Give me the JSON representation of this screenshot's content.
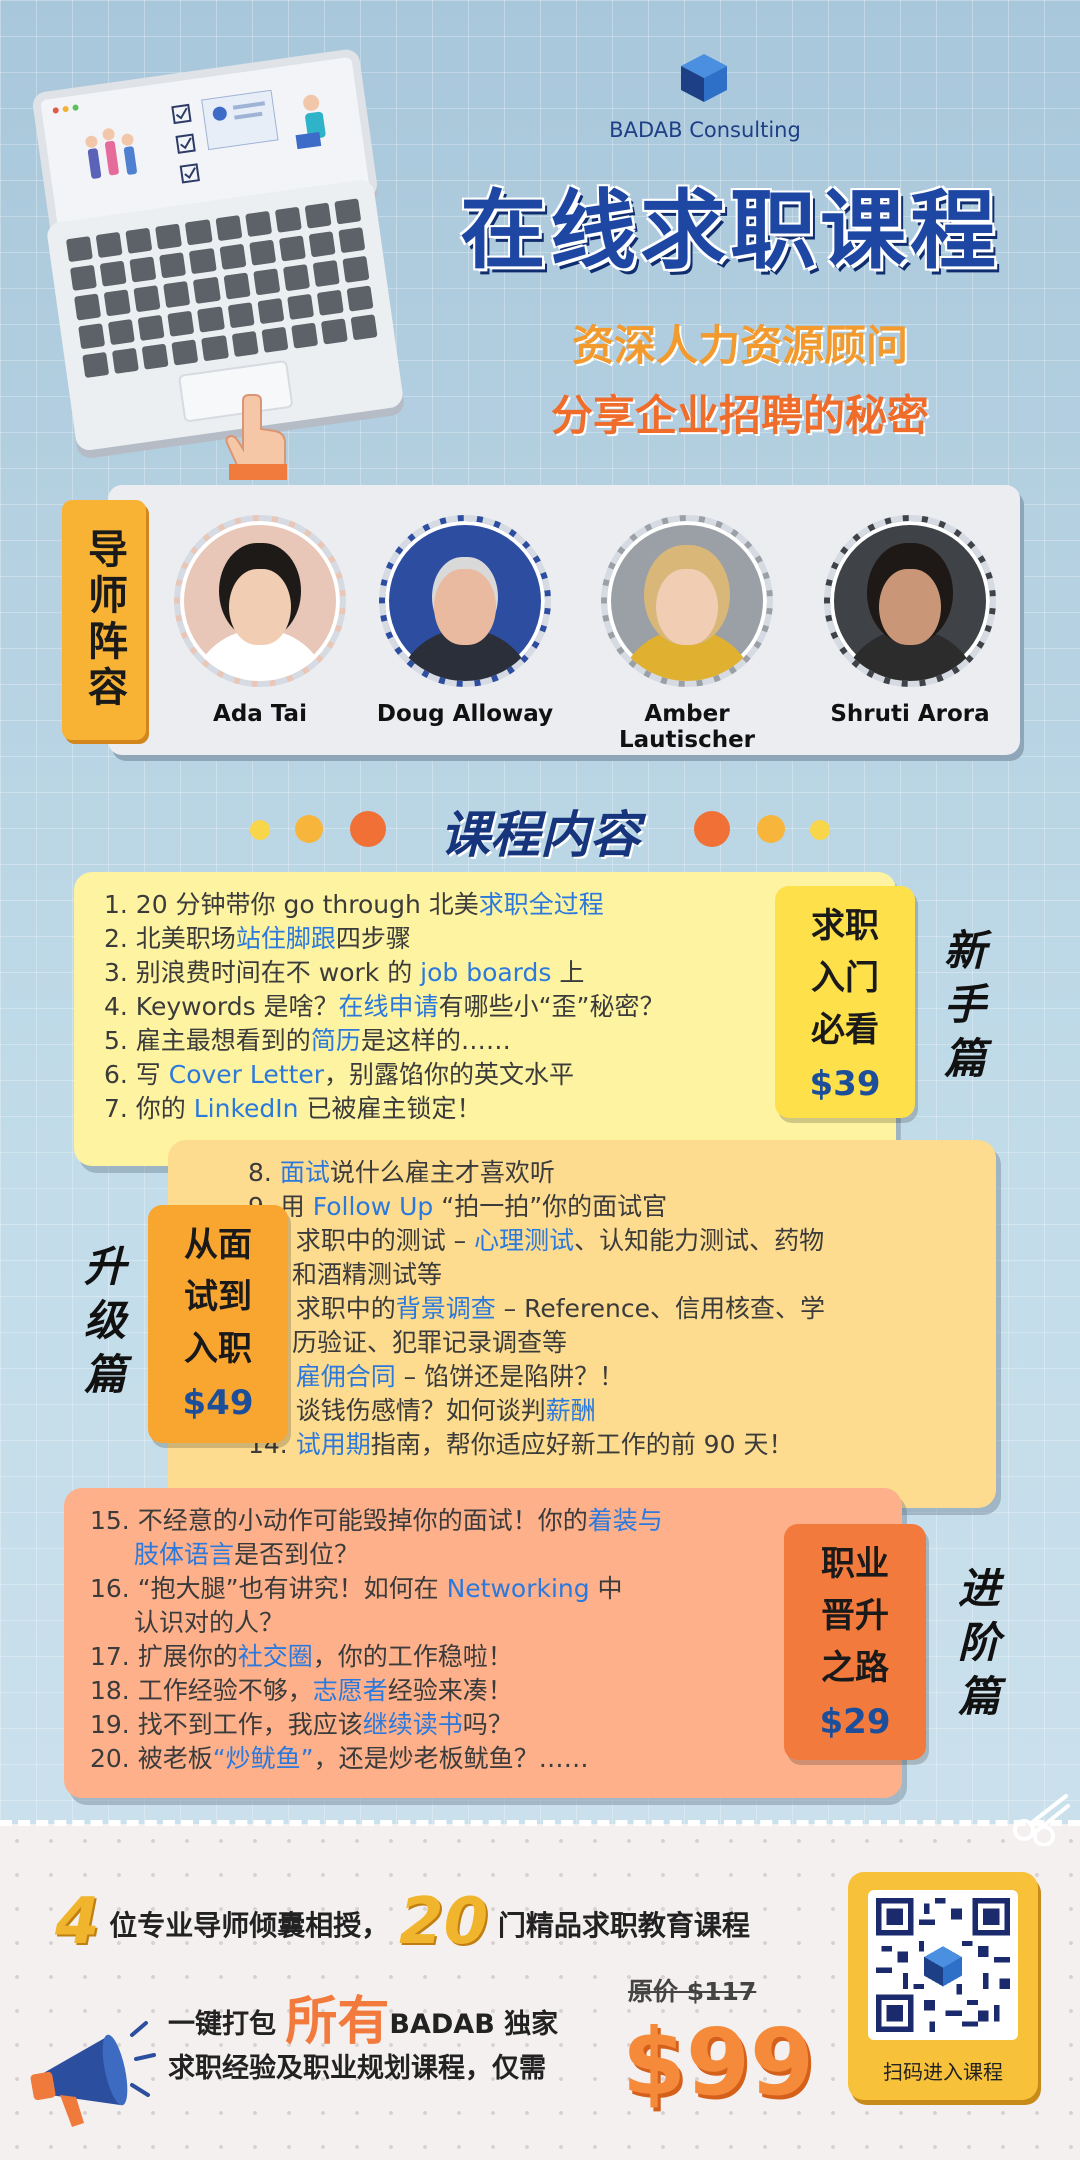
{
  "brand": {
    "name": "BADAB Consulting"
  },
  "header": {
    "title": "在线求职课程",
    "subtitle1": "资深人力资源顾问",
    "subtitle2": "分享企业招聘的秘密"
  },
  "mentors": {
    "tag": "导师阵容",
    "people": [
      {
        "name": "Ada Tai"
      },
      {
        "name": "Doug Alloway"
      },
      {
        "name": "Amber Lautischer"
      },
      {
        "name": "Shruti Arora"
      }
    ]
  },
  "course": {
    "title": "课程内容"
  },
  "sections": [
    {
      "side_label": "新手篇",
      "badge_text": "求职入门必看",
      "price": "$39",
      "items": [
        [
          "1. 20 分钟带你 go through 北美",
          "求职全过程",
          ""
        ],
        [
          "2. 北美职场",
          "站住脚跟",
          "四步骤"
        ],
        [
          "3. 别浪费时间在不 work 的 ",
          "job boards",
          " 上"
        ],
        [
          "4. Keywords 是啥？",
          "在线申请",
          "有哪些小“歪”秘密？"
        ],
        [
          "5. 雇主最想看到的",
          "简历",
          "是这样的……"
        ],
        [
          "6. 写 ",
          "Cover Letter",
          "，别露馅你的英文水平"
        ],
        [
          "7. 你的 ",
          "LinkedIn",
          " 已被雇主锁定！"
        ]
      ]
    },
    {
      "side_label": "升级篇",
      "badge_text": "从面试到入职",
      "price": "$49",
      "items": [
        [
          "8. ",
          "面试",
          "说什么雇主才喜欢听"
        ],
        [
          "9. 用 ",
          "Follow Up",
          " “拍一拍”你的面试官"
        ],
        [
          "10. 求职中的测试 – ",
          "心理测试",
          "、认知能力测试、药物"
        ],
        [
          "和酒精测试等",
          "",
          ""
        ],
        [
          "11. 求职中的",
          "背景调查",
          " – Reference、信用核查、学"
        ],
        [
          "历验证、犯罪记录调查等",
          "",
          ""
        ],
        [
          "12. ",
          "雇佣合同",
          " – 馅饼还是陷阱？！"
        ],
        [
          "13. 谈钱伤感情？如何谈判",
          "薪酬",
          ""
        ],
        [
          "14. ",
          "试用期",
          "指南，帮你适应好新工作的前 90 天！"
        ]
      ]
    },
    {
      "side_label": "进阶篇",
      "badge_text": "职业晋升之路",
      "price": "$29",
      "items": [
        [
          "15. 不经意的小动作可能毁掉你的面试！你的",
          "着装与",
          ""
        ],
        [
          "",
          "肢体语言",
          "是否到位？"
        ],
        [
          "16. “抱大腿”也有讲究！如何在 ",
          "Networking",
          " 中"
        ],
        [
          "认识对的人？",
          "",
          ""
        ],
        [
          "17. 扩展你的",
          "社交圈",
          "，你的工作稳啦！"
        ],
        [
          "18. 工作经验不够，",
          "志愿者",
          "经验来凑！"
        ],
        [
          "19. 找不到工作，我应该",
          "继续读书",
          "吗？"
        ],
        [
          "20. 被老板",
          "“炒鱿鱼”",
          "，还是炒老板鱿鱼？……"
        ]
      ]
    }
  ],
  "footer": {
    "mentor_count": "4",
    "tagline_mid": "位专业导师倾囊相授，",
    "course_count": "20",
    "tagline_end": "门精品求职教育课程",
    "promo_line1_pre": "一键打包",
    "promo_line1_emph": "所有",
    "promo_line1_post": "BADAB 独家",
    "promo_line2": "求职经验及职业规划课程，仅需",
    "original_price": "原价 $117",
    "price": "$99",
    "qr_label": "扫码进入课程"
  },
  "colors": {
    "title_blue": "#1d47a3",
    "highlight": "#2b79dd",
    "orange": "#f27a3d",
    "yellow": "#f8b334"
  }
}
